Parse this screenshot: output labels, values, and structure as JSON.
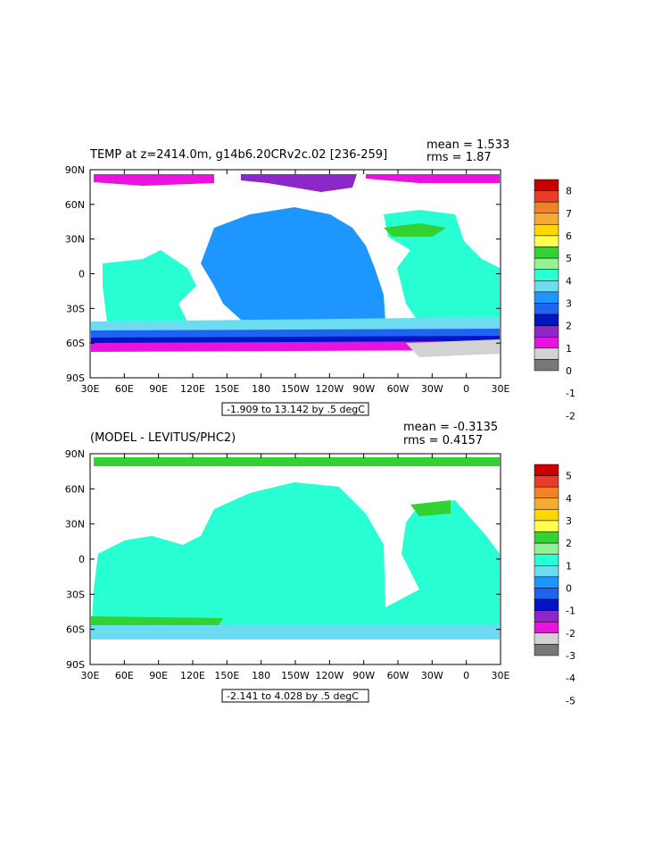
{
  "panels": [
    {
      "title": "TEMP at z=2414.0m, g14b6.20CRv2c.02 [236-259]",
      "mean_text": "mean = 1.533",
      "rms_text": "rms = 1.87",
      "range_text": "-1.909 to 13.142 by .5 degC",
      "legend_labels": [
        "8",
        "7",
        "6",
        "5",
        "4",
        "3",
        "2",
        "1",
        "0",
        "-1",
        "-2"
      ],
      "legend_colors": [
        "#c80000",
        "#e63c28",
        "#f08228",
        "#f5aa32",
        "#ffd700",
        "#ffff50",
        "#32d232",
        "#96f096",
        "#28ffd2",
        "#6edcf0",
        "#1e96ff",
        "#1e64f0",
        "#0014c8",
        "#8c28c8",
        "#e614dc",
        "#d2d2d2",
        "#787878"
      ]
    },
    {
      "title": "(MODEL - LEVITUS/PHC2)",
      "mean_text": "mean = -0.3135",
      "rms_text": "rms = 0.4157",
      "range_text": "-2.141 to 4.028 by .5 degC",
      "legend_labels": [
        "5",
        "4",
        "3",
        "2",
        "1",
        "0",
        "-1",
        "-2",
        "-3",
        "-4",
        "-5"
      ],
      "legend_colors": [
        "#c80000",
        "#e63c28",
        "#f08228",
        "#f5aa32",
        "#ffd700",
        "#ffff50",
        "#32d232",
        "#96f096",
        "#28ffd2",
        "#6edcf0",
        "#1e96ff",
        "#1e64f0",
        "#0014c8",
        "#8c28c8",
        "#e614dc",
        "#d2d2d2",
        "#787878"
      ]
    }
  ],
  "x_ticks": [
    "30E",
    "60E",
    "90E",
    "120E",
    "150E",
    "180",
    "150W",
    "120W",
    "90W",
    "60W",
    "30W",
    "0",
    "30E"
  ],
  "y_ticks": [
    "90N",
    "60N",
    "30N",
    "0",
    "30S",
    "60S",
    "90S"
  ],
  "colors": {
    "land": "#ffffff",
    "panel1_main": "#28ffd2",
    "panel1_pacific": "#1e96ff",
    "panel2_main": "#28ffd2"
  }
}
